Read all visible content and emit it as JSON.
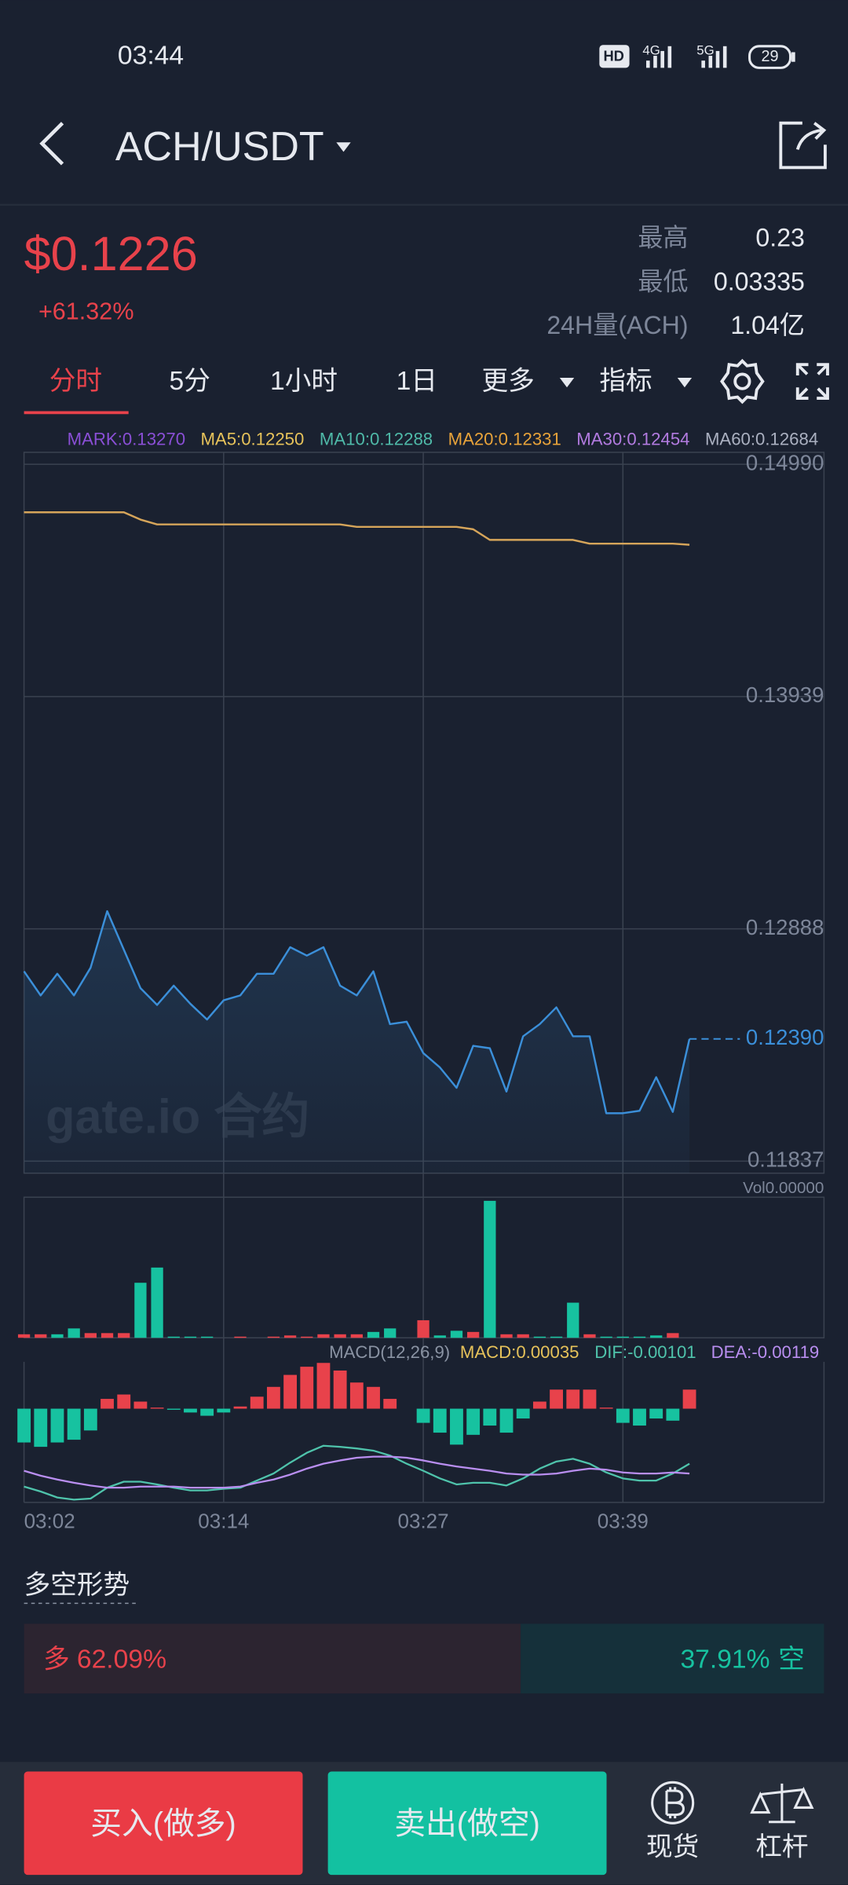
{
  "status_bar": {
    "time": "03:44",
    "hd": "HD",
    "network": [
      "4G",
      "5G"
    ],
    "battery": "29"
  },
  "header": {
    "pair": "ACH/USDT"
  },
  "ticker": {
    "price": "$0.1226",
    "change": "+61.32%",
    "stats": [
      {
        "label": "最高",
        "value": "0.23"
      },
      {
        "label": "最低",
        "value": "0.03335"
      },
      {
        "label": "24H量(ACH)",
        "value": "1.04亿"
      }
    ]
  },
  "tabs": [
    "分时",
    "5分",
    "1小时",
    "1日",
    "更多",
    "指标"
  ],
  "chart_data": [
    {
      "type": "line",
      "categories": [
        "03:02",
        null,
        null,
        null,
        null,
        null,
        null,
        null,
        null,
        null,
        null,
        null,
        "03:14",
        null,
        null,
        null,
        null,
        null,
        null,
        null,
        null,
        null,
        null,
        null,
        "03:27",
        null,
        null,
        null,
        null,
        null,
        null,
        null,
        null,
        null,
        null,
        null,
        "03:39",
        null,
        null,
        null,
        null
      ],
      "series": [
        {
          "color": "#3b8fd9",
          "fill": true,
          "values": [
            0.12696,
            0.12587,
            0.12685,
            0.12587,
            0.12712,
            0.12968,
            0.12794,
            0.1262,
            0.12544,
            0.12631,
            0.12549,
            0.12478,
            0.12565,
            0.12587,
            0.12685,
            0.12685,
            0.12805,
            0.12767,
            0.12805,
            0.12631,
            0.12587,
            0.12696,
            0.12457,
            0.12468,
            0.12326,
            0.12261,
            0.12169,
            0.12359,
            0.12348,
            0.12152,
            0.12402,
            0.12457,
            0.12533,
            0.12402,
            0.12402,
            0.12054,
            0.12054,
            0.12065,
            0.12217,
            0.1206,
            0.1239
          ]
        },
        {
          "color": "#d6a55a",
          "fill": false,
          "values": [
            0.14773,
            0.14773,
            0.14773,
            0.14773,
            0.14773,
            0.14773,
            0.14773,
            0.1474,
            0.14718,
            0.14718,
            0.14718,
            0.14718,
            0.14718,
            0.14718,
            0.14718,
            0.14718,
            0.14718,
            0.14718,
            0.14718,
            0.14718,
            0.14707,
            0.14707,
            0.14707,
            0.14707,
            0.14707,
            0.14707,
            0.14707,
            0.14696,
            0.14648,
            0.14648,
            0.14648,
            0.14648,
            0.14648,
            0.14648,
            0.14631,
            0.14631,
            0.14631,
            0.14631,
            0.14631,
            0.14631,
            0.14626
          ]
        }
      ],
      "ylim": [
        0.11837,
        0.1499
      ],
      "yticks": [
        {
          "value": 0.1499,
          "label": "0.14990"
        },
        0.13939,
        0.12888,
        0.11837
      ],
      "grid": true,
      "last_price": {
        "value": 0.1239,
        "label": "0.12390"
      },
      "indicators": [
        {
          "text": "MARK:0.13270",
          "color": "#8a4fd6"
        },
        {
          "text": "MA5:0.12250",
          "color": "#e6c25a"
        },
        {
          "text": "MA10:0.12288",
          "color": "#4fb9a8"
        },
        {
          "text": "MA20:0.12331",
          "color": "#e8a33a"
        },
        {
          "text": "MA30:0.12454",
          "color": "#b27be0"
        },
        {
          "text": "MA60:0.12684",
          "color": "#aab0c0"
        }
      ],
      "watermark": "gate.io 合约"
    },
    {
      "type": "bar",
      "label": "Vol0.00000",
      "values": [
        3,
        3,
        3,
        8,
        4,
        4,
        4,
        47,
        60,
        1,
        1,
        1,
        0,
        1,
        0,
        1,
        2,
        1,
        3,
        3,
        3,
        5,
        8,
        0,
        15,
        2,
        6,
        5,
        117,
        3,
        3,
        1,
        1,
        30,
        3,
        1,
        1,
        1,
        2,
        4,
        0
      ],
      "colors": [
        "#e8424b",
        "#e8424b",
        "#17c2a0",
        "#17c2a0",
        "#e8424b",
        "#e8424b",
        "#e8424b",
        "#17c2a0",
        "#17c2a0",
        "#17c2a0",
        "#17c2a0",
        "#17c2a0",
        "#17c2a0",
        "#e8424b",
        "#17c2a0",
        "#e8424b",
        "#e8424b",
        "#e8424b",
        "#e8424b",
        "#e8424b",
        "#e8424b",
        "#17c2a0",
        "#17c2a0",
        "#17c2a0",
        "#e8424b",
        "#17c2a0",
        "#17c2a0",
        "#e8424b",
        "#17c2a0",
        "#e8424b",
        "#e8424b",
        "#17c2a0",
        "#17c2a0",
        "#17c2a0",
        "#e8424b",
        "#17c2a0",
        "#17c2a0",
        "#17c2a0",
        "#17c2a0",
        "#e8424b",
        "#17c2a0"
      ]
    },
    {
      "type": "macd",
      "legend": [
        {
          "text": "MACD(12,26,9)",
          "color": "#8a93a3"
        },
        {
          "text": "MACD:0.00035",
          "color": "#e6c25a"
        },
        {
          "text": "DIF:-0.00101",
          "color": "#4fc3ab"
        },
        {
          "text": "DEA:-0.00119",
          "color": "#b98ef0"
        }
      ],
      "values": [
        -0.00062,
        -0.0007,
        -0.00062,
        -0.00057,
        -0.0004,
        0.00018,
        0.00026,
        0.00013,
        2e-05,
        -2e-05,
        -7e-05,
        -0.00013,
        -7e-05,
        4e-05,
        0.00022,
        0.0004,
        0.00062,
        0.00077,
        0.00084,
        0.0007,
        0.00048,
        0.0004,
        0.00018,
        0,
        -0.00026,
        -0.00044,
        -0.00066,
        -0.00048,
        -0.00031,
        -0.00044,
        -0.00018,
        0.00013,
        0.00035,
        0.00035,
        0.00035,
        2e-05,
        -0.00026,
        -0.00031,
        -0.00018,
        -0.00022,
        0.00035
      ],
      "up_color": "#e8424b",
      "down_color": "#17c2a0",
      "series": [
        {
          "color": "#4fc3ab",
          "values": [
            -0.00143,
            -0.00152,
            -0.00163,
            -0.00167,
            -0.00165,
            -0.00145,
            -0.00134,
            -0.00134,
            -0.00139,
            -0.00145,
            -0.0015,
            -0.0015,
            -0.00147,
            -0.00145,
            -0.00132,
            -0.00119,
            -0.00099,
            -0.00081,
            -0.00068,
            -0.0007,
            -0.00073,
            -0.00077,
            -0.00086,
            -0.00101,
            -0.00114,
            -0.00128,
            -0.00139,
            -0.00136,
            -0.00136,
            -0.00141,
            -0.00128,
            -0.0011,
            -0.00097,
            -0.00092,
            -0.00101,
            -0.00117,
            -0.00128,
            -0.00132,
            -0.00132,
            -0.00119,
            -0.00101
          ]
        },
        {
          "color": "#b98ef0",
          "values": [
            -0.00114,
            -0.00123,
            -0.0013,
            -0.00136,
            -0.00141,
            -0.00145,
            -0.00145,
            -0.00143,
            -0.00143,
            -0.00143,
            -0.00145,
            -0.00145,
            -0.00145,
            -0.00143,
            -0.00136,
            -0.0013,
            -0.00121,
            -0.0011,
            -0.00101,
            -0.00095,
            -0.0009,
            -0.00088,
            -0.00088,
            -0.0009,
            -0.00095,
            -0.00101,
            -0.00106,
            -0.0011,
            -0.00114,
            -0.00119,
            -0.00121,
            -0.00121,
            -0.00119,
            -0.00114,
            -0.0011,
            -0.00112,
            -0.00117,
            -0.00119,
            -0.00119,
            -0.00117,
            -0.00119
          ]
        }
      ],
      "ylim": [
        -0.00172,
        0.00086
      ]
    }
  ],
  "sentiment": {
    "title": "多空形势",
    "labels": [
      "多",
      "空"
    ],
    "values": [
      62.09,
      37.91
    ],
    "value_labels": [
      "62.09%",
      "37.91%"
    ],
    "colors": [
      "#e8424b",
      "#17c2a0"
    ]
  },
  "actions": {
    "buy": "买入(做多)",
    "sell": "卖出(做空)",
    "spot": "现货",
    "margin": "杠杆"
  }
}
